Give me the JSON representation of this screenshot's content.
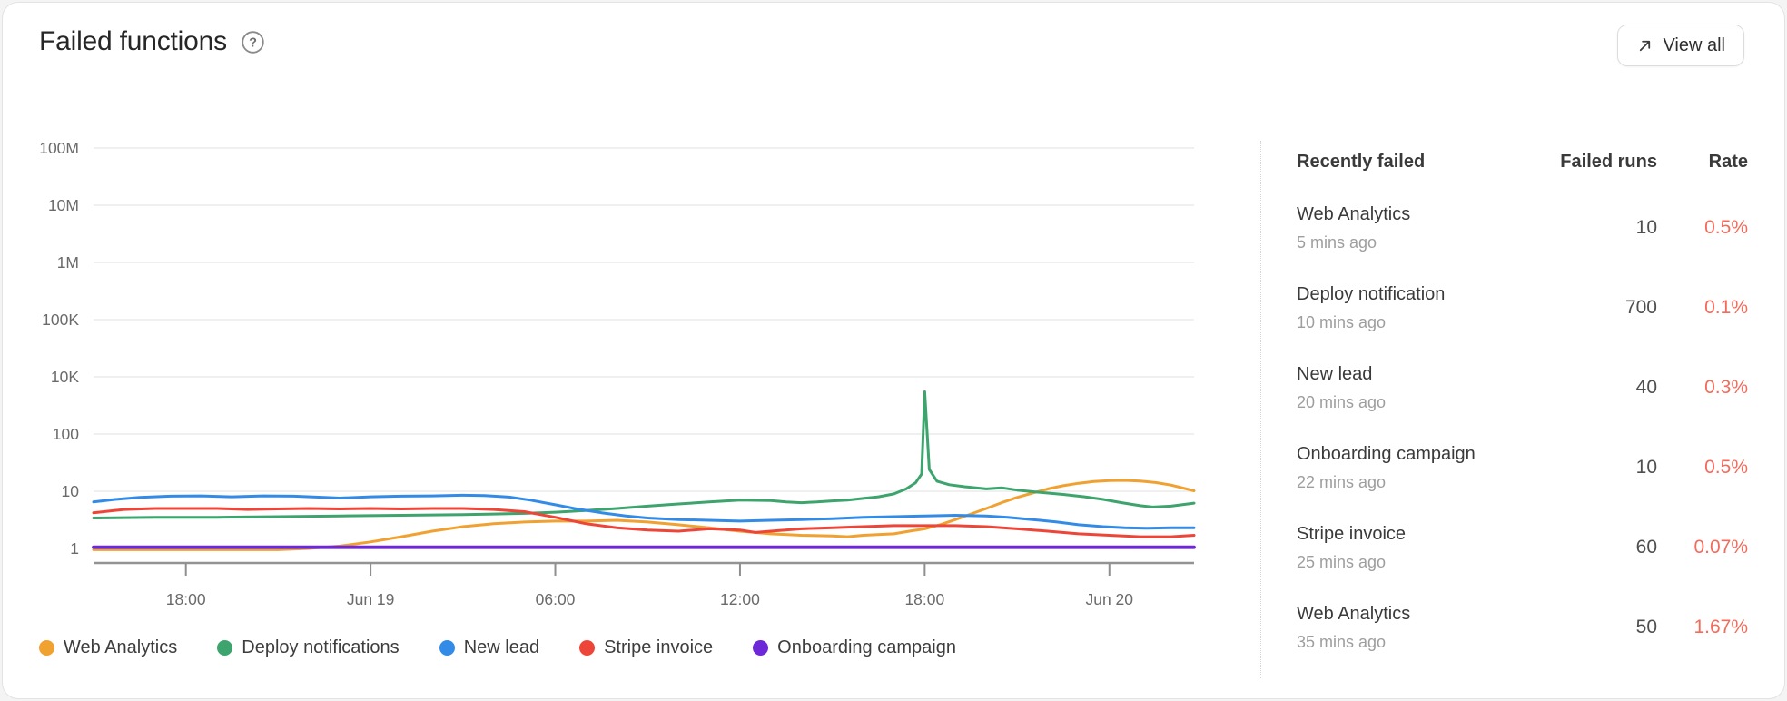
{
  "card": {
    "title": "Failed functions",
    "view_all_label": "View all"
  },
  "chart_data": {
    "type": "line",
    "title": "Failed functions",
    "y_axis": {
      "scale": "log",
      "tick_labels": [
        "100M",
        "10M",
        "1M",
        "100K",
        "10K",
        "100",
        "10",
        "1"
      ]
    },
    "x_axis": {
      "tick_labels": [
        "18:00",
        "Jun 19",
        "06:00",
        "12:00",
        "18:00",
        "Jun 20"
      ],
      "tick_hours": [
        3,
        9,
        15,
        21,
        27,
        33
      ],
      "range_hours": [
        0,
        35.75
      ]
    },
    "grid": true,
    "legend_position": "bottom",
    "series": [
      {
        "name": "Web Analytics",
        "color": "#F0A130",
        "points": [
          [
            0,
            0.95
          ],
          [
            2,
            0.95
          ],
          [
            4,
            0.95
          ],
          [
            6,
            0.95
          ],
          [
            7,
            1.0
          ],
          [
            8,
            1.1
          ],
          [
            9,
            1.3
          ],
          [
            10,
            1.6
          ],
          [
            11,
            2.0
          ],
          [
            12,
            2.4
          ],
          [
            13,
            2.7
          ],
          [
            14,
            2.9
          ],
          [
            15,
            3.0
          ],
          [
            16,
            3.0
          ],
          [
            17,
            3.1
          ],
          [
            18,
            2.9
          ],
          [
            19,
            2.6
          ],
          [
            20,
            2.3
          ],
          [
            21,
            2.0
          ],
          [
            21.5,
            1.9
          ],
          [
            22,
            1.8
          ],
          [
            23,
            1.7
          ],
          [
            24,
            1.65
          ],
          [
            24.5,
            1.6
          ],
          [
            25,
            1.7
          ],
          [
            26,
            1.8
          ],
          [
            26.5,
            2.0
          ],
          [
            27,
            2.2
          ],
          [
            27.5,
            2.6
          ],
          [
            28,
            3.2
          ],
          [
            28.5,
            4.0
          ],
          [
            29,
            5.0
          ],
          [
            29.5,
            6.3
          ],
          [
            30,
            7.8
          ],
          [
            30.5,
            9.3
          ],
          [
            31,
            11
          ],
          [
            31.5,
            12.5
          ],
          [
            32,
            13.8
          ],
          [
            32.5,
            14.8
          ],
          [
            33,
            15.4
          ],
          [
            33.5,
            15.5
          ],
          [
            34,
            15.1
          ],
          [
            34.5,
            14.2
          ],
          [
            35,
            12.8
          ],
          [
            35.75,
            10.2
          ]
        ]
      },
      {
        "name": "Deploy notifications",
        "color": "#3CA46C",
        "points": [
          [
            0,
            3.4
          ],
          [
            2,
            3.5
          ],
          [
            4,
            3.5
          ],
          [
            6,
            3.6
          ],
          [
            8,
            3.7
          ],
          [
            10,
            3.8
          ],
          [
            12,
            3.9
          ],
          [
            13,
            4.0
          ],
          [
            14,
            4.1
          ],
          [
            15,
            4.3
          ],
          [
            16,
            4.6
          ],
          [
            17,
            5.0
          ],
          [
            18,
            5.5
          ],
          [
            19,
            6.0
          ],
          [
            20,
            6.5
          ],
          [
            21,
            7.0
          ],
          [
            22,
            6.9
          ],
          [
            22.5,
            6.5
          ],
          [
            23,
            6.3
          ],
          [
            23.5,
            6.5
          ],
          [
            24,
            6.8
          ],
          [
            24.5,
            7.0
          ],
          [
            25,
            7.5
          ],
          [
            25.5,
            8.0
          ],
          [
            26,
            9.0
          ],
          [
            26.4,
            11
          ],
          [
            26.7,
            14
          ],
          [
            26.9,
            20
          ],
          [
            27.0,
            3000
          ],
          [
            27.15,
            24
          ],
          [
            27.4,
            15
          ],
          [
            27.8,
            13
          ],
          [
            28.3,
            12
          ],
          [
            29,
            11
          ],
          [
            29.5,
            11.5
          ],
          [
            30,
            10.5
          ],
          [
            30.8,
            9.5
          ],
          [
            31.5,
            8.8
          ],
          [
            32.2,
            8.0
          ],
          [
            32.8,
            7.2
          ],
          [
            33.4,
            6.3
          ],
          [
            34,
            5.6
          ],
          [
            34.4,
            5.3
          ],
          [
            35,
            5.5
          ],
          [
            35.75,
            6.2
          ]
        ]
      },
      {
        "name": "New lead",
        "color": "#338BE8",
        "points": [
          [
            0,
            6.5
          ],
          [
            0.7,
            7.2
          ],
          [
            1.5,
            7.8
          ],
          [
            2.5,
            8.2
          ],
          [
            3.5,
            8.3
          ],
          [
            4.5,
            8.0
          ],
          [
            5.5,
            8.3
          ],
          [
            6.5,
            8.2
          ],
          [
            7.5,
            7.8
          ],
          [
            8,
            7.6
          ],
          [
            9,
            8.0
          ],
          [
            10,
            8.2
          ],
          [
            11,
            8.3
          ],
          [
            12,
            8.5
          ],
          [
            12.7,
            8.4
          ],
          [
            13.5,
            7.9
          ],
          [
            14.2,
            7.0
          ],
          [
            15,
            5.8
          ],
          [
            15.7,
            4.9
          ],
          [
            16.5,
            4.2
          ],
          [
            17.3,
            3.7
          ],
          [
            18,
            3.4
          ],
          [
            19,
            3.2
          ],
          [
            20,
            3.1
          ],
          [
            21,
            3.0
          ],
          [
            22,
            3.1
          ],
          [
            23,
            3.2
          ],
          [
            24,
            3.3
          ],
          [
            25,
            3.5
          ],
          [
            26,
            3.6
          ],
          [
            27,
            3.7
          ],
          [
            28,
            3.8
          ],
          [
            29,
            3.7
          ],
          [
            29.7,
            3.5
          ],
          [
            30.5,
            3.2
          ],
          [
            31.3,
            2.9
          ],
          [
            32,
            2.6
          ],
          [
            32.8,
            2.4
          ],
          [
            33.5,
            2.3
          ],
          [
            34.2,
            2.25
          ],
          [
            35,
            2.3
          ],
          [
            35.75,
            2.3
          ]
        ]
      },
      {
        "name": "Stripe invoice",
        "color": "#ED4638",
        "points": [
          [
            0,
            4.2
          ],
          [
            1,
            4.8
          ],
          [
            2,
            5.0
          ],
          [
            3,
            5.0
          ],
          [
            4,
            5.0
          ],
          [
            5,
            4.8
          ],
          [
            6,
            4.9
          ],
          [
            7,
            5.0
          ],
          [
            8,
            4.9
          ],
          [
            9,
            5.0
          ],
          [
            10,
            4.9
          ],
          [
            11,
            5.0
          ],
          [
            12,
            5.0
          ],
          [
            13,
            4.8
          ],
          [
            14,
            4.4
          ],
          [
            15,
            3.5
          ],
          [
            16,
            2.7
          ],
          [
            17,
            2.3
          ],
          [
            18,
            2.1
          ],
          [
            19,
            2.0
          ],
          [
            20,
            2.2
          ],
          [
            21,
            2.1
          ],
          [
            21.5,
            1.9
          ],
          [
            22,
            2.0
          ],
          [
            23,
            2.2
          ],
          [
            24,
            2.3
          ],
          [
            25,
            2.4
          ],
          [
            26,
            2.5
          ],
          [
            27,
            2.5
          ],
          [
            28,
            2.5
          ],
          [
            29,
            2.4
          ],
          [
            30,
            2.2
          ],
          [
            31,
            2.0
          ],
          [
            32,
            1.8
          ],
          [
            33,
            1.7
          ],
          [
            34,
            1.6
          ],
          [
            35,
            1.6
          ],
          [
            35.75,
            1.7
          ]
        ]
      },
      {
        "name": "Onboarding campaign",
        "color": "#6D28D8",
        "points": [
          [
            0,
            1.05
          ],
          [
            35.75,
            1.05
          ]
        ]
      }
    ]
  },
  "table": {
    "headers": [
      "Recently failed",
      "Failed runs",
      "Rate"
    ],
    "rate_color": "#F26B5B",
    "rows": [
      {
        "name": "Web Analytics",
        "ago": "5 mins ago",
        "runs": "10",
        "rate": "0.5%"
      },
      {
        "name": "Deploy notification",
        "ago": "10 mins ago",
        "runs": "700",
        "rate": "0.1%"
      },
      {
        "name": "New lead",
        "ago": "20 mins ago",
        "runs": "40",
        "rate": "0.3%"
      },
      {
        "name": "Onboarding campaign",
        "ago": "22 mins ago",
        "runs": "10",
        "rate": "0.5%"
      },
      {
        "name": "Stripe invoice",
        "ago": "25 mins ago",
        "runs": "60",
        "rate": "0.07%"
      },
      {
        "name": "Web Analytics",
        "ago": "35 mins ago",
        "runs": "50",
        "rate": "1.67%"
      }
    ]
  }
}
